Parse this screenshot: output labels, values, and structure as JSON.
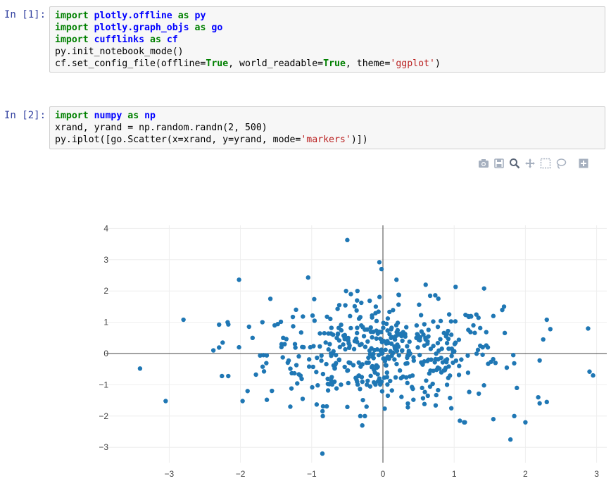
{
  "cells": [
    {
      "prompt": "In [1]:",
      "lines": [
        [
          {
            "t": "import",
            "c": "kw"
          },
          {
            "t": " "
          },
          {
            "t": "plotly.offline",
            "c": "def"
          },
          {
            "t": " "
          },
          {
            "t": "as",
            "c": "kw"
          },
          {
            "t": " "
          },
          {
            "t": "py",
            "c": "def"
          }
        ],
        [
          {
            "t": "import",
            "c": "kw"
          },
          {
            "t": " "
          },
          {
            "t": "plotly.graph_objs",
            "c": "def"
          },
          {
            "t": " "
          },
          {
            "t": "as",
            "c": "kw"
          },
          {
            "t": " "
          },
          {
            "t": "go",
            "c": "def"
          }
        ],
        [
          {
            "t": "import",
            "c": "kw"
          },
          {
            "t": " "
          },
          {
            "t": "cufflinks",
            "c": "def"
          },
          {
            "t": " "
          },
          {
            "t": "as",
            "c": "kw"
          },
          {
            "t": " "
          },
          {
            "t": "cf",
            "c": "def"
          }
        ],
        [
          {
            "t": "py.init_notebook_mode()"
          }
        ],
        [
          {
            "t": "cf.set_config_file(offline="
          },
          {
            "t": "True",
            "c": "bool"
          },
          {
            "t": ", world_readable="
          },
          {
            "t": "True",
            "c": "bool"
          },
          {
            "t": ", theme="
          },
          {
            "t": "'ggplot'",
            "c": "str"
          },
          {
            "t": ")"
          }
        ]
      ]
    },
    {
      "prompt": "In [2]:",
      "lines": [
        [
          {
            "t": "import",
            "c": "kw"
          },
          {
            "t": " "
          },
          {
            "t": "numpy",
            "c": "def"
          },
          {
            "t": " "
          },
          {
            "t": "as",
            "c": "kw"
          },
          {
            "t": " "
          },
          {
            "t": "np",
            "c": "def"
          }
        ],
        [
          {
            "t": "xrand, yrand = np.random.randn(2, 500)"
          }
        ],
        [
          {
            "t": "py.iplot([go.Scatter(x=xrand, y=yrand, mode="
          },
          {
            "t": "'markers'",
            "c": "str"
          },
          {
            "t": ")])"
          }
        ]
      ]
    }
  ],
  "modebar": [
    "camera-icon",
    "save-icon",
    "zoom-icon",
    "pan-icon",
    "box-select-icon",
    "lasso-icon",
    "plus-icon"
  ],
  "chart_data": {
    "type": "scatter",
    "title": "",
    "xlabel": "",
    "ylabel": "",
    "xlim": [
      -3.45,
      3.1
    ],
    "ylim": [
      -3.5,
      4.2
    ],
    "xticks": [
      -3,
      -2,
      -1,
      0,
      1,
      2,
      3
    ],
    "yticks": [
      4,
      3,
      2,
      1,
      0,
      -1,
      -2,
      -3
    ],
    "xtick_labels": [
      "−3",
      "−2",
      "−1",
      "0",
      "1",
      "2",
      "3"
    ],
    "ytick_labels": [
      "4",
      "3",
      "2",
      "1",
      "0",
      "−1",
      "−2",
      "−3"
    ],
    "grid": true,
    "marker_color": "#1f77b4",
    "series": [
      {
        "x": [
          -0.5,
          -0.05,
          -0.02,
          0.19,
          -2.02,
          -1.05,
          0.6,
          1.02,
          1.42,
          1.7,
          -1.58,
          2.3,
          2.35,
          2.88,
          -2.8,
          -3.41,
          -3.05,
          -2.17,
          -2.18,
          -0.85,
          -0.29,
          1.79,
          2.0,
          2.18,
          2.3,
          2.95,
          2.9,
          -1.97,
          -2.26,
          -1.9,
          -0.23,
          0.35,
          1.08,
          1.14,
          1.15,
          1.55,
          1.88,
          -1.3,
          -0.93,
          -0.68,
          0.35,
          0.63,
          0.96,
          -1.4,
          -1.22,
          -0.45,
          -0.1,
          0.22,
          0.93,
          1.27,
          1.55,
          -0.3,
          -0.7,
          -0.46,
          0.07,
          0.47,
          0.96,
          1.4,
          1.83,
          -1.83,
          -2.02,
          -2.25,
          -2.38,
          -1.52,
          -1.38,
          -1.02,
          0.01,
          0.27,
          0.64,
          1.07,
          1.58,
          2.25,
          0.05,
          -0.05,
          -0.5,
          0.9,
          0.55
        ],
        "y": [
          3.63,
          2.92,
          2.7,
          2.36,
          2.36,
          2.43,
          2.2,
          2.13,
          2.08,
          1.5,
          1.75,
          1.08,
          0.78,
          0.8,
          1.08,
          -0.48,
          -1.52,
          0.93,
          1.0,
          -3.2,
          -2.3,
          -2.75,
          -2.2,
          -1.4,
          -1.55,
          -0.7,
          -0.58,
          -1.52,
          -0.72,
          -1.2,
          -1.7,
          -1.72,
          -2.15,
          -2.2,
          -2.2,
          -2.1,
          -1.1,
          -1.7,
          -1.63,
          -0.9,
          -1.6,
          -1.35,
          -1.75,
          0.5,
          1.4,
          1.9,
          1.5,
          1.88,
          1.25,
          0.9,
          1.2,
          0.3,
          0.6,
          -0.3,
          -0.1,
          0.5,
          0.6,
          0.2,
          -0.05,
          0.5,
          0.2,
          0.35,
          0.1,
          0.9,
          0.3,
          0.2,
          0.4,
          0.1,
          -0.2,
          -0.4,
          -0.3,
          0.45,
          0.95,
          -0.8,
          -0.55,
          -1.0,
          -1.1
        ]
      }
    ]
  }
}
